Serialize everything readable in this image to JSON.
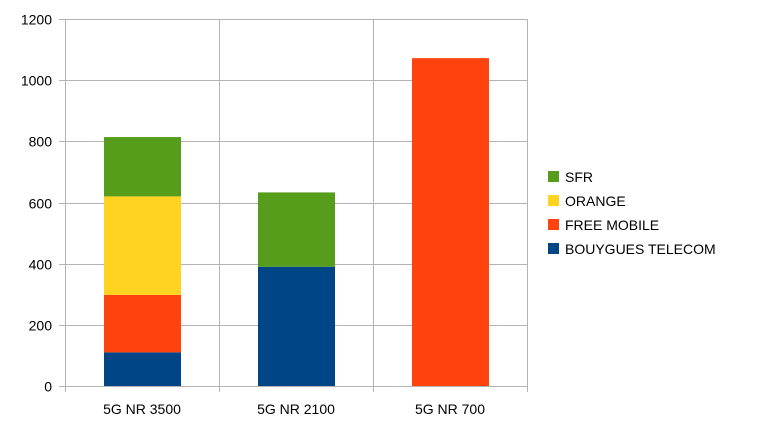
{
  "chart_data": {
    "type": "bar",
    "stacked": true,
    "categories": [
      "5G NR 3500",
      "5G NR 2100",
      "5G NR 700"
    ],
    "series": [
      {
        "name": "BOUYGUES TELECOM",
        "color": "#004586",
        "values": [
          110,
          390,
          0
        ]
      },
      {
        "name": "FREE MOBILE",
        "color": "#FF420E",
        "values": [
          188,
          0,
          1072
        ]
      },
      {
        "name": "ORANGE",
        "color": "#FFD320",
        "values": [
          322,
          0,
          0
        ]
      },
      {
        "name": "SFR",
        "color": "#579D1C",
        "values": [
          194,
          243,
          0
        ]
      }
    ],
    "legend_order": [
      "SFR",
      "ORANGE",
      "FREE MOBILE",
      "BOUYGUES TELECOM"
    ],
    "ylim": [
      0,
      1200
    ],
    "yticks": [
      0,
      200,
      400,
      600,
      800,
      1000,
      1200
    ],
    "grid": true,
    "legend_position": "right",
    "title": "",
    "xlabel": "",
    "ylabel": ""
  }
}
